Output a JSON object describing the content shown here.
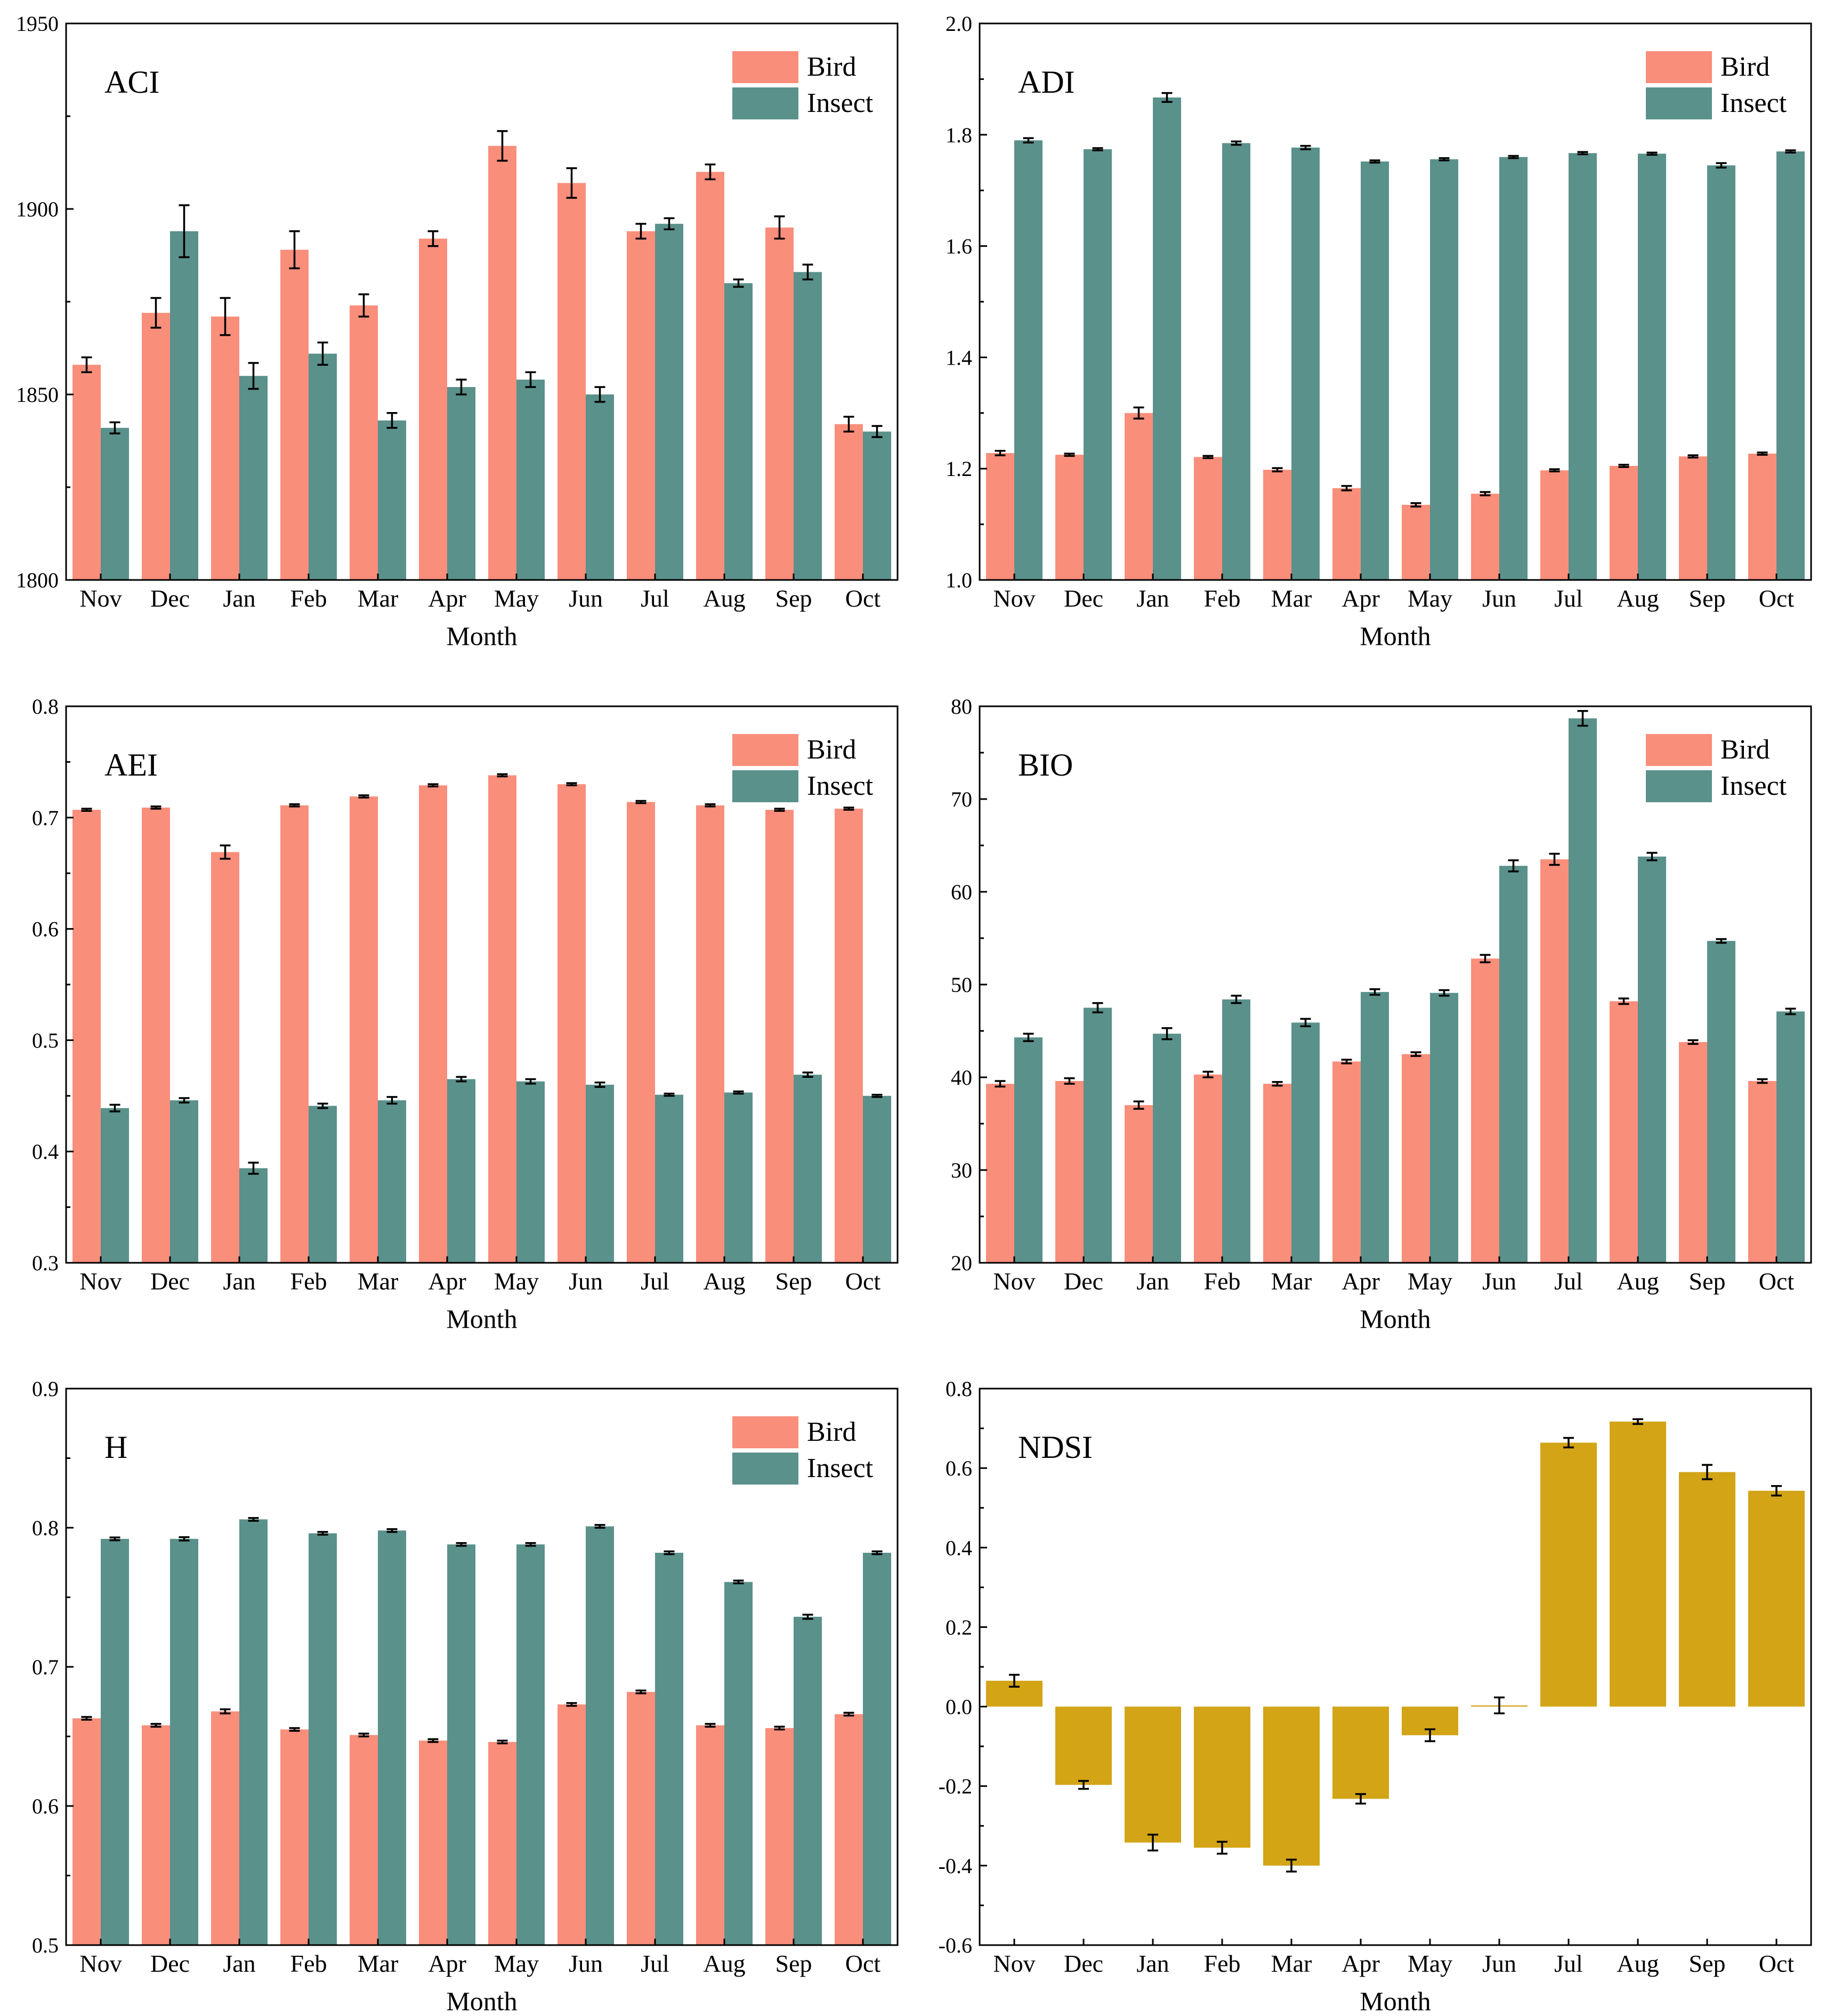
{
  "colors": {
    "bird": "#F98E7B",
    "insect": "#5A918B",
    "ndsi": "#D2A416",
    "axis": "#000000"
  },
  "chart_data": [
    {
      "type": "bar",
      "title": "ACI",
      "xlabel": "Month",
      "ylabel": "",
      "ylim": [
        1800,
        1950
      ],
      "yticks": [
        "1800",
        "1850",
        "1900",
        "1950"
      ],
      "categories": [
        "Nov",
        "Dec",
        "Jan",
        "Feb",
        "Mar",
        "Apr",
        "May",
        "Jun",
        "Jul",
        "Aug",
        "Sep",
        "Oct"
      ],
      "legend": [
        "Bird",
        "Insect"
      ],
      "series": [
        {
          "name": "Bird",
          "values": [
            1858,
            1872,
            1871,
            1889,
            1874,
            1892,
            1917,
            1907,
            1894,
            1910,
            1895,
            1842
          ],
          "errors": [
            2,
            4,
            5,
            5,
            3,
            2,
            4,
            4,
            2,
            2,
            3,
            2
          ]
        },
        {
          "name": "Insect",
          "values": [
            1841,
            1894,
            1855,
            1861,
            1843,
            1852,
            1854,
            1850,
            1896,
            1880,
            1883,
            1840
          ],
          "errors": [
            1.5,
            7,
            3.5,
            3,
            2,
            2,
            2,
            2,
            1.5,
            1,
            2,
            1.5
          ]
        }
      ]
    },
    {
      "type": "bar",
      "title": "ADI",
      "xlabel": "Month",
      "ylabel": "",
      "ylim": [
        1.0,
        2.0
      ],
      "yticks": [
        "1.0",
        "1.2",
        "1.4",
        "1.6",
        "1.8",
        "2.0"
      ],
      "categories": [
        "Nov",
        "Dec",
        "Jan",
        "Feb",
        "Mar",
        "Apr",
        "May",
        "Jun",
        "Jul",
        "Aug",
        "Sep",
        "Oct"
      ],
      "legend": [
        "Bird",
        "Insect"
      ],
      "series": [
        {
          "name": "Bird",
          "values": [
            1.228,
            1.225,
            1.3,
            1.221,
            1.198,
            1.165,
            1.135,
            1.155,
            1.197,
            1.205,
            1.222,
            1.227
          ],
          "errors": [
            0.004,
            0.002,
            0.01,
            0.002,
            0.003,
            0.004,
            0.003,
            0.003,
            0.002,
            0.002,
            0.002,
            0.002
          ]
        },
        {
          "name": "Insect",
          "values": [
            1.79,
            1.774,
            1.867,
            1.785,
            1.777,
            1.752,
            1.756,
            1.76,
            1.767,
            1.766,
            1.745,
            1.77
          ],
          "errors": [
            0.004,
            0.002,
            0.008,
            0.003,
            0.003,
            0.002,
            0.002,
            0.002,
            0.002,
            0.002,
            0.004,
            0.002
          ]
        }
      ]
    },
    {
      "type": "bar",
      "title": "AEI",
      "xlabel": "Month",
      "ylabel": "",
      "ylim": [
        0.3,
        0.8
      ],
      "yticks": [
        "0.3",
        "0.4",
        "0.5",
        "0.6",
        "0.7",
        "0.8"
      ],
      "categories": [
        "Nov",
        "Dec",
        "Jan",
        "Feb",
        "Mar",
        "Apr",
        "May",
        "Jun",
        "Jul",
        "Aug",
        "Sep",
        "Oct"
      ],
      "legend": [
        "Bird",
        "Insect"
      ],
      "series": [
        {
          "name": "Bird",
          "values": [
            0.707,
            0.709,
            0.669,
            0.711,
            0.719,
            0.729,
            0.738,
            0.73,
            0.714,
            0.711,
            0.707,
            0.708
          ],
          "errors": [
            0.001,
            0.001,
            0.006,
            0.001,
            0.001,
            0.001,
            0.001,
            0.001,
            0.001,
            0.001,
            0.001,
            0.001
          ]
        },
        {
          "name": "Insect",
          "values": [
            0.439,
            0.446,
            0.385,
            0.441,
            0.446,
            0.465,
            0.463,
            0.46,
            0.451,
            0.453,
            0.469,
            0.45
          ],
          "errors": [
            0.003,
            0.002,
            0.005,
            0.002,
            0.003,
            0.002,
            0.002,
            0.002,
            0.001,
            0.001,
            0.002,
            0.001
          ]
        }
      ]
    },
    {
      "type": "bar",
      "title": "BIO",
      "xlabel": "Month",
      "ylabel": "",
      "ylim": [
        20,
        80
      ],
      "yticks": [
        "20",
        "30",
        "40",
        "50",
        "60",
        "70",
        "80"
      ],
      "categories": [
        "Nov",
        "Dec",
        "Jan",
        "Feb",
        "Mar",
        "Apr",
        "May",
        "Jun",
        "Jul",
        "Aug",
        "Sep",
        "Oct"
      ],
      "legend": [
        "Bird",
        "Insect"
      ],
      "series": [
        {
          "name": "Bird",
          "values": [
            39.3,
            39.6,
            37.0,
            40.3,
            39.3,
            41.7,
            42.5,
            52.8,
            63.5,
            48.2,
            43.8,
            39.6
          ],
          "errors": [
            0.3,
            0.3,
            0.4,
            0.3,
            0.2,
            0.2,
            0.2,
            0.4,
            0.6,
            0.3,
            0.2,
            0.2
          ]
        },
        {
          "name": "Insect",
          "values": [
            44.3,
            47.5,
            44.7,
            48.4,
            45.9,
            49.2,
            49.1,
            62.8,
            78.7,
            63.8,
            54.7,
            47.1
          ],
          "errors": [
            0.4,
            0.5,
            0.6,
            0.4,
            0.4,
            0.3,
            0.3,
            0.6,
            0.8,
            0.4,
            0.2,
            0.3
          ]
        }
      ]
    },
    {
      "type": "bar",
      "title": "H",
      "xlabel": "Month",
      "ylabel": "",
      "ylim": [
        0.5,
        0.9
      ],
      "yticks": [
        "0.5",
        "0.6",
        "0.7",
        "0.8",
        "0.9"
      ],
      "categories": [
        "Nov",
        "Dec",
        "Jan",
        "Feb",
        "Mar",
        "Apr",
        "May",
        "Jun",
        "Jul",
        "Aug",
        "Sep",
        "Oct"
      ],
      "legend": [
        "Bird",
        "Insect"
      ],
      "series": [
        {
          "name": "Bird",
          "values": [
            0.663,
            0.658,
            0.668,
            0.655,
            0.651,
            0.647,
            0.646,
            0.673,
            0.682,
            0.658,
            0.656,
            0.666
          ],
          "errors": [
            0.001,
            0.001,
            0.0015,
            0.001,
            0.001,
            0.001,
            0.001,
            0.001,
            0.001,
            0.001,
            0.001,
            0.001
          ]
        },
        {
          "name": "Insect",
          "values": [
            0.792,
            0.792,
            0.806,
            0.796,
            0.798,
            0.788,
            0.788,
            0.801,
            0.782,
            0.761,
            0.736,
            0.782
          ],
          "errors": [
            0.001,
            0.0012,
            0.001,
            0.001,
            0.001,
            0.001,
            0.001,
            0.001,
            0.001,
            0.001,
            0.0015,
            0.001
          ]
        }
      ]
    },
    {
      "type": "bar",
      "title": "NDSI",
      "xlabel": "Month",
      "ylabel": "",
      "ylim": [
        -0.6,
        0.8
      ],
      "yticks": [
        "-0.6",
        "-0.4",
        "-0.2",
        "0.0",
        "0.2",
        "0.4",
        "0.6",
        "0.8"
      ],
      "categories": [
        "Nov",
        "Dec",
        "Jan",
        "Feb",
        "Mar",
        "Apr",
        "May",
        "Jun",
        "Jul",
        "Aug",
        "Sep",
        "Oct"
      ],
      "legend": [],
      "series": [
        {
          "name": "NDSI",
          "values": [
            0.065,
            -0.197,
            -0.342,
            -0.355,
            -0.4,
            -0.232,
            -0.072,
            0.003,
            0.664,
            0.717,
            0.59,
            0.543
          ],
          "errors": [
            0.015,
            0.01,
            0.02,
            0.015,
            0.015,
            0.012,
            0.015,
            0.02,
            0.012,
            0.006,
            0.018,
            0.012
          ]
        }
      ]
    }
  ]
}
